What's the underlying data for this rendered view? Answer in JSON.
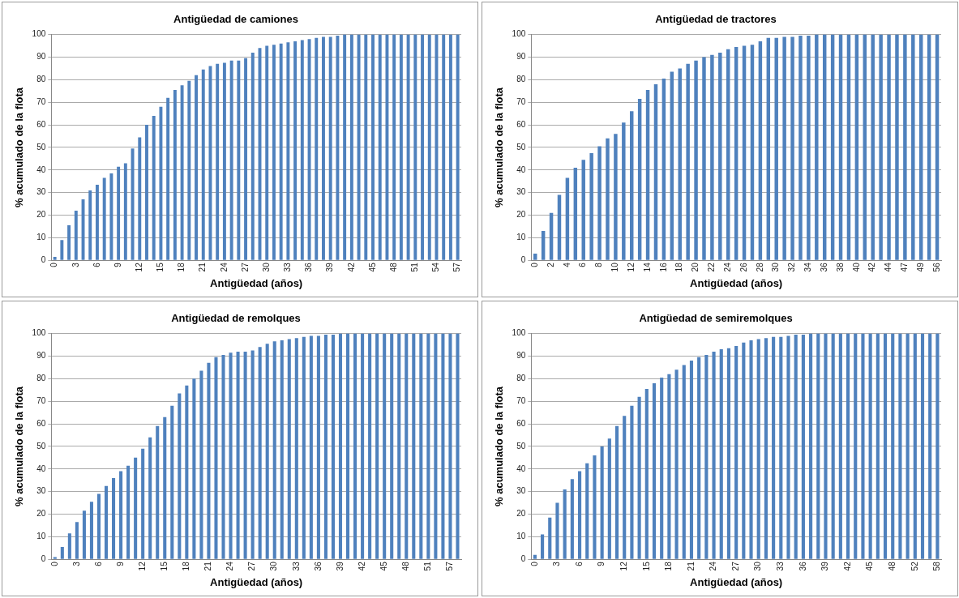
{
  "chart_data": [
    {
      "type": "bar",
      "title": "Antigüedad de camiones",
      "xlabel": "Antigüedad (años)",
      "ylabel": "% acumulado de la flota",
      "color": "#4f81bd",
      "ylim": [
        0,
        100
      ],
      "yticks": [
        0,
        10,
        20,
        30,
        40,
        50,
        60,
        70,
        80,
        90,
        100
      ],
      "grid": "y",
      "categories": [
        "0",
        null,
        null,
        "3",
        null,
        null,
        "6",
        null,
        null,
        "9",
        null,
        null,
        "12",
        null,
        null,
        "15",
        null,
        null,
        "18",
        null,
        null,
        "21",
        null,
        null,
        "24",
        null,
        null,
        "27",
        null,
        null,
        "30",
        null,
        null,
        "33",
        null,
        null,
        "36",
        null,
        null,
        "39",
        null,
        null,
        "42",
        null,
        null,
        "45",
        null,
        null,
        "48",
        null,
        null,
        "51",
        null,
        null,
        "54",
        null,
        null,
        "57"
      ],
      "values": [
        1.5,
        9,
        15.5,
        22,
        27,
        31,
        33.5,
        36.5,
        38.5,
        41.5,
        43,
        49.5,
        54.5,
        60,
        64,
        68,
        72,
        75.5,
        77.5,
        79.5,
        82,
        84.5,
        86,
        87,
        87.5,
        88.5,
        88.5,
        89.5,
        92,
        94,
        95,
        95.5,
        96,
        96.5,
        97,
        97.5,
        98,
        98.5,
        99,
        99,
        99.5,
        100,
        100,
        100,
        100,
        100,
        100,
        100,
        100,
        100,
        100,
        100,
        100,
        100,
        100,
        100,
        100,
        100
      ]
    },
    {
      "type": "bar",
      "title": "Antigüedad de tractores",
      "xlabel": "Antigüedad (años)",
      "ylabel": "% acumulado de la flota",
      "color": "#4f81bd",
      "ylim": [
        0,
        100
      ],
      "yticks": [
        0,
        10,
        20,
        30,
        40,
        50,
        60,
        70,
        80,
        90,
        100
      ],
      "grid": "y",
      "categories": [
        "0",
        null,
        "2",
        null,
        "4",
        null,
        "6",
        null,
        "8",
        null,
        "10",
        null,
        "12",
        null,
        "14",
        null,
        "16",
        null,
        "18",
        null,
        "20",
        null,
        "22",
        null,
        "24",
        null,
        "26",
        null,
        "28",
        null,
        "30",
        null,
        "32",
        null,
        "34",
        null,
        "36",
        null,
        "38",
        null,
        "40",
        null,
        "42",
        null,
        "44",
        null,
        "47",
        null,
        "49",
        null,
        "56"
      ],
      "values": [
        3,
        13,
        21,
        29,
        36.5,
        41,
        44.5,
        47.5,
        50.5,
        54,
        56,
        61,
        66,
        71.5,
        75.5,
        78,
        80.5,
        83.5,
        85,
        87,
        88.5,
        90,
        91,
        92,
        93.5,
        94.5,
        95,
        95.5,
        97,
        98.5,
        98.5,
        99,
        99,
        99.5,
        99.5,
        100,
        100,
        100,
        100,
        100,
        100,
        100,
        100,
        100,
        100,
        100,
        100,
        100,
        100,
        100,
        100
      ]
    },
    {
      "type": "bar",
      "title": "Antigüedad de remolques",
      "xlabel": "Antigüedad (años)",
      "ylabel": "% acumulado de la flota",
      "color": "#4f81bd",
      "ylim": [
        0,
        100
      ],
      "yticks": [
        0,
        10,
        20,
        30,
        40,
        50,
        60,
        70,
        80,
        90,
        100
      ],
      "grid": "y",
      "categories": [
        "0",
        null,
        null,
        "3",
        null,
        null,
        "6",
        null,
        null,
        "9",
        null,
        null,
        "12",
        null,
        null,
        "15",
        null,
        null,
        "18",
        null,
        null,
        "21",
        null,
        null,
        "24",
        null,
        null,
        "27",
        null,
        null,
        "30",
        null,
        null,
        "33",
        null,
        null,
        "36",
        null,
        null,
        "39",
        null,
        null,
        "42",
        null,
        null,
        "45",
        null,
        null,
        "48",
        null,
        null,
        "51",
        null,
        null,
        "57",
        null
      ],
      "values": [
        1,
        5.5,
        11.5,
        16.5,
        21.5,
        25.5,
        29,
        32.5,
        36,
        39,
        41.5,
        45,
        49,
        54,
        59,
        63,
        68,
        73.5,
        77,
        80,
        83.5,
        87,
        89.5,
        90.5,
        91.5,
        92,
        92,
        92.5,
        94,
        95.5,
        96.5,
        97,
        97.5,
        98,
        98.5,
        99,
        99,
        99.5,
        99.5,
        100,
        100,
        100,
        100,
        100,
        100,
        100,
        100,
        100,
        100,
        100,
        100,
        100,
        100,
        100,
        100,
        100
      ]
    },
    {
      "type": "bar",
      "title": "Antigüedad de semiremolques",
      "xlabel": "Antigüedad (años)",
      "ylabel": "% acumulado de la flota",
      "color": "#4f81bd",
      "ylim": [
        0,
        100
      ],
      "yticks": [
        0,
        10,
        20,
        30,
        40,
        50,
        60,
        70,
        80,
        90,
        100
      ],
      "grid": "y",
      "categories": [
        "0",
        null,
        null,
        "3",
        null,
        null,
        "6",
        null,
        null,
        "9",
        null,
        null,
        "12",
        null,
        null,
        "15",
        null,
        null,
        "18",
        null,
        null,
        "21",
        null,
        null,
        "24",
        null,
        null,
        "27",
        null,
        null,
        "30",
        null,
        null,
        "33",
        null,
        null,
        "36",
        null,
        null,
        "39",
        null,
        null,
        "42",
        null,
        null,
        "45",
        null,
        null,
        "48",
        null,
        null,
        "52",
        null,
        null,
        "58"
      ],
      "values": [
        2,
        11,
        18.5,
        25,
        31,
        35.5,
        39,
        42.5,
        46,
        50,
        53.5,
        59,
        63.5,
        68,
        72,
        75.5,
        78,
        80.5,
        82,
        84,
        86,
        88,
        89.5,
        90.5,
        92,
        93,
        93.5,
        94.5,
        96,
        97,
        97.5,
        98,
        98.5,
        98.5,
        99,
        99.5,
        99.5,
        100,
        100,
        100,
        100,
        100,
        100,
        100,
        100,
        100,
        100,
        100,
        100,
        100,
        100,
        100,
        100,
        100,
        100
      ]
    }
  ]
}
